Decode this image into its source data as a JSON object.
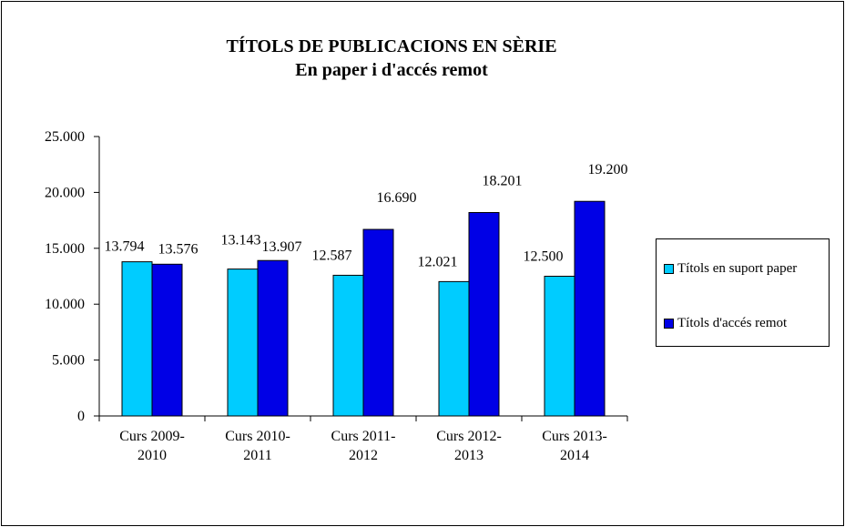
{
  "chart_data": {
    "type": "bar",
    "title": "TÍTOLS DE PUBLICACIONS EN SÈRIE",
    "subtitle": "En paper i d'accés remot",
    "categories": [
      [
        "Curs 2009-",
        "2010"
      ],
      [
        "Curs 2010-",
        "2011"
      ],
      [
        "Curs 2011-",
        "2012"
      ],
      [
        "Curs 2012-",
        "2013"
      ],
      [
        "Curs 2013-",
        "2014"
      ]
    ],
    "series": [
      {
        "name": "Títols en suport paper",
        "color": "#00CCFF",
        "values": [
          13794,
          13143,
          12587,
          12021,
          12500
        ],
        "labels": [
          "13.794",
          "13.143",
          "12.587",
          "12.021",
          "12.500"
        ]
      },
      {
        "name": "Títols d'accés remot",
        "color": "#0000E6",
        "values": [
          13576,
          13907,
          16690,
          18201,
          19200
        ],
        "labels": [
          "13.576",
          "13.907",
          "16.690",
          "18.201",
          "19.200"
        ]
      }
    ],
    "ylim": [
      0,
      25000
    ],
    "yticks": [
      0,
      5000,
      10000,
      15000,
      20000,
      25000
    ],
    "ytick_labels": [
      "0",
      "5.000",
      "10.000",
      "15.000",
      "20.000",
      "25.000"
    ],
    "xlabel": "",
    "ylabel": "",
    "grid": false,
    "legend_position": "right"
  }
}
